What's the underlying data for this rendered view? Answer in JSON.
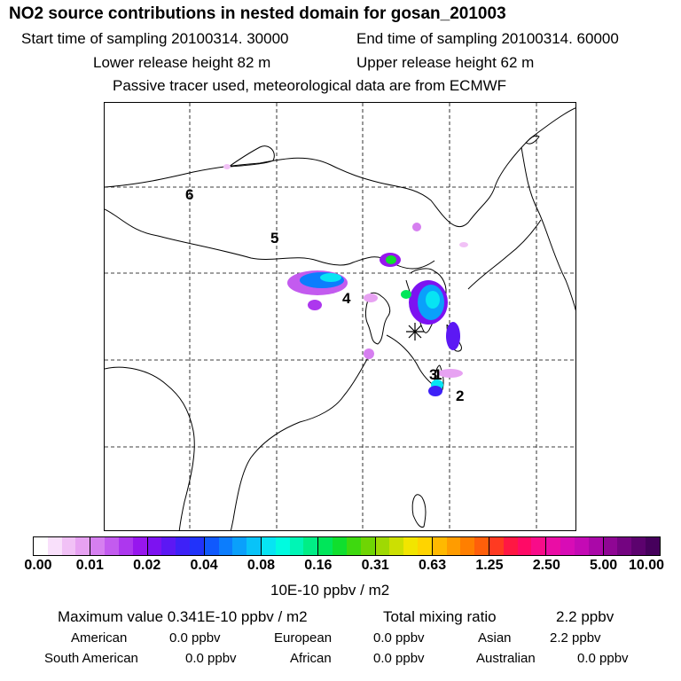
{
  "header": {
    "title": "NO2 source contributions in nested domain for gosan_201003",
    "start_time": "Start time of sampling 20100314. 30000",
    "end_time": "End time of sampling 20100314. 60000",
    "lower_release": "Lower release height   82 m",
    "upper_release": "Upper release height   62 m",
    "tracer_info": "Passive tracer used, meteorological data are from ECMWF"
  },
  "map": {
    "markers": [
      "1",
      "2",
      "3",
      "4",
      "5",
      "6"
    ],
    "receptor_symbol": "✳"
  },
  "colorbar": {
    "ticks": [
      "0.00",
      "0.01",
      "0.02",
      "0.04",
      "0.08",
      "0.16",
      "0.31",
      "0.63",
      "1.25",
      "2.50",
      "5.00",
      "10.00"
    ],
    "colors": [
      "#ffffff",
      "#f9e0fb",
      "#f1c1f6",
      "#e7a2f2",
      "#d67ff0",
      "#c35bef",
      "#ad37ee",
      "#9716ee",
      "#7d12f1",
      "#5c18f4",
      "#3e21f7",
      "#2133fa",
      "#1059fd",
      "#0c7dfd",
      "#0aa0fb",
      "#08c3f8",
      "#07e4f3",
      "#00fbe0",
      "#00f5b5",
      "#00ee86",
      "#00e65a",
      "#10df2e",
      "#3ed90f",
      "#6fd504",
      "#9fd903",
      "#ccdf02",
      "#f2e500",
      "#ffd400",
      "#ffb900",
      "#ff9c00",
      "#ff7f00",
      "#ff5f0a",
      "#ff3a21",
      "#ff1743",
      "#ff0a66",
      "#f80c89",
      "#ea0da5",
      "#d80cb6",
      "#c40ab5",
      "#aa08a8",
      "#8f0694",
      "#740481",
      "#5c026e",
      "#46005c"
    ],
    "unit": "10E-10 ppbv / m2"
  },
  "summary": {
    "maximum": "Maximum value  0.341E-10 ppbv / m2",
    "total": "Total mixing ratio",
    "total_value": "2.2 ppbv",
    "regions": [
      {
        "name": "American",
        "value": "0.0 ppbv"
      },
      {
        "name": "European",
        "value": "0.0 ppbv"
      },
      {
        "name": "Asian",
        "value": "2.2 ppbv"
      },
      {
        "name": "South American",
        "value": "0.0 ppbv"
      },
      {
        "name": "African",
        "value": "0.0 ppbv"
      },
      {
        "name": "Australian",
        "value": "0.0 ppbv"
      }
    ]
  }
}
